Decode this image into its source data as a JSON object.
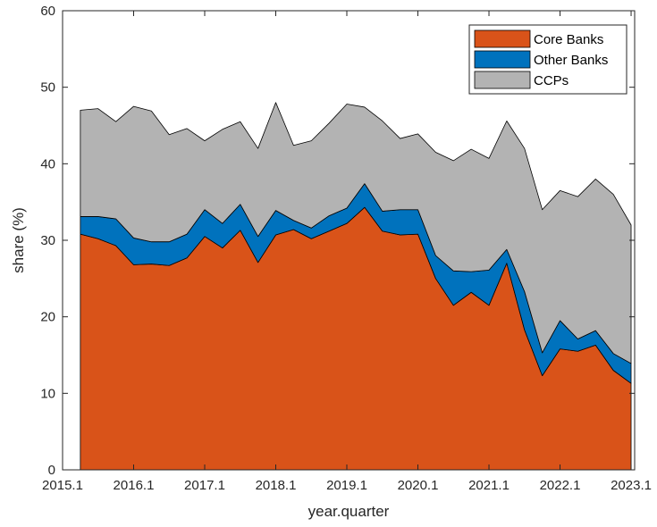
{
  "chart_data": {
    "type": "area",
    "stacked": true,
    "xlabel": "year.quarter",
    "ylabel": "share (%)",
    "ylim": [
      0,
      60
    ],
    "xlim": [
      2015.0,
      2023.05
    ],
    "yticks": [
      0,
      10,
      20,
      30,
      40,
      50,
      60
    ],
    "xticks": [
      {
        "v": 2015.0,
        "label": "2015.1"
      },
      {
        "v": 2016.0,
        "label": "2016.1"
      },
      {
        "v": 2017.0,
        "label": "2017.1"
      },
      {
        "v": 2018.0,
        "label": "2018.1"
      },
      {
        "v": 2019.0,
        "label": "2019.1"
      },
      {
        "v": 2020.0,
        "label": "2020.1"
      },
      {
        "v": 2021.0,
        "label": "2021.1"
      },
      {
        "v": 2022.0,
        "label": "2022.1"
      },
      {
        "v": 2023.0,
        "label": "2023.1"
      }
    ],
    "grid": false,
    "legend_position": "top-right",
    "x": [
      2015.25,
      2015.5,
      2015.75,
      2016.0,
      2016.25,
      2016.5,
      2016.75,
      2017.0,
      2017.25,
      2017.5,
      2017.75,
      2018.0,
      2018.25,
      2018.5,
      2018.75,
      2019.0,
      2019.25,
      2019.5,
      2019.75,
      2020.0,
      2020.25,
      2020.5,
      2020.75,
      2021.0,
      2021.25,
      2021.5,
      2021.75,
      2022.0,
      2022.25,
      2022.5,
      2022.75,
      2023.0
    ],
    "series": [
      {
        "name": "Core Banks",
        "color": "#D95319",
        "values": [
          30.8,
          30.2,
          29.3,
          26.8,
          26.9,
          26.7,
          27.7,
          30.5,
          29.0,
          31.3,
          27.1,
          30.7,
          31.4,
          30.2,
          31.2,
          32.2,
          34.3,
          31.2,
          30.7,
          30.8,
          25.0,
          21.5,
          23.2,
          21.5,
          27.0,
          18.3,
          12.3,
          15.8,
          15.5,
          16.3,
          13.0,
          11.3
        ]
      },
      {
        "name": "Other Banks",
        "color": "#0072BD",
        "values": [
          2.3,
          2.9,
          3.5,
          3.5,
          2.9,
          3.1,
          3.1,
          3.5,
          3.2,
          3.4,
          3.4,
          3.2,
          1.2,
          1.4,
          2.0,
          2.0,
          3.1,
          2.6,
          3.3,
          3.2,
          3.0,
          4.5,
          2.7,
          4.6,
          1.8,
          5.0,
          3.0,
          3.7,
          1.6,
          1.9,
          2.2,
          2.6
        ]
      },
      {
        "name": "CCPs",
        "color": "#B3B3B3",
        "values": [
          13.9,
          14.1,
          12.7,
          17.2,
          17.1,
          14.0,
          13.8,
          9.0,
          12.3,
          10.8,
          11.5,
          14.1,
          9.8,
          11.4,
          12.1,
          13.6,
          10.0,
          11.8,
          9.3,
          9.9,
          13.5,
          14.4,
          16.0,
          14.6,
          16.8,
          18.7,
          18.7,
          17.0,
          18.6,
          19.8,
          20.8,
          18.1
        ]
      }
    ]
  }
}
